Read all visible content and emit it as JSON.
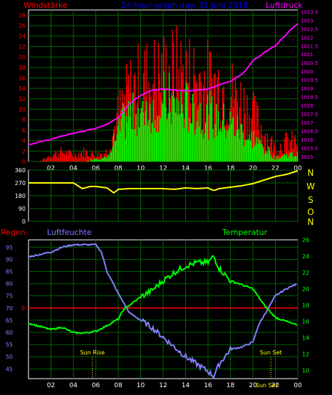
{
  "header": {
    "left_label": "Windstärke",
    "title": "24-hour-graph day: 31 Juni 2018",
    "right_label": "Luftdruck"
  },
  "colors": {
    "wind_gust": "#ff0000",
    "wind_avg": "#00ff00",
    "pressure": "#ff00ff",
    "direction": "#ffff00",
    "compass": "#ffff00",
    "humidity": "#8080ff",
    "temperature": "#00ff00",
    "rain": "#ff0000",
    "grid": "#006600",
    "frame": "#ffffff",
    "title": "#0000ff",
    "label_red": "#ff0000",
    "sun_text": "#ffff00"
  },
  "chart_data": [
    {
      "type": "bar",
      "name": "wind-pressure",
      "x_ticks": [
        "02",
        "04",
        "06",
        "08",
        "10",
        "12",
        "14",
        "16",
        "18",
        "20",
        "22",
        "00"
      ],
      "x_range": [
        0,
        24
      ],
      "ylim_left": [
        0,
        29
      ],
      "yticks_left": [
        0,
        2,
        4,
        6,
        8,
        10,
        12,
        14,
        16,
        18,
        20,
        22,
        24,
        26,
        28
      ],
      "ylim_right": [
        1014.7,
        1023.6
      ],
      "yticks_right": [
        "1015",
        "1015.5",
        "1016",
        "1016.5",
        "1017",
        "1017.5",
        "1018",
        "1018.5",
        "1019",
        "1019.5",
        "1020",
        "1020.5",
        "1021",
        "1021.5",
        "1022",
        "1022.5",
        "1023",
        "1023.5"
      ],
      "pressure": {
        "x": [
          0,
          1,
          2,
          3,
          4,
          5,
          6,
          7,
          8,
          9,
          10,
          11,
          12,
          13,
          14,
          15,
          16,
          17,
          18,
          19,
          20,
          21,
          22,
          23,
          24
        ],
        "values": [
          1015.7,
          1015.85,
          1016.0,
          1016.2,
          1016.35,
          1016.5,
          1016.65,
          1016.9,
          1017.3,
          1018.1,
          1018.6,
          1018.9,
          1018.95,
          1018.9,
          1018.85,
          1018.9,
          1018.95,
          1019.2,
          1019.4,
          1019.8,
          1020.6,
          1021.1,
          1021.5,
          1022.2,
          1022.8
        ]
      },
      "wind_hourly": {
        "x": [
          0,
          1,
          2,
          3,
          4,
          5,
          6,
          7,
          8,
          9,
          10,
          11,
          12,
          13,
          14,
          15,
          16,
          17,
          18,
          19,
          20,
          21,
          22,
          23
        ],
        "gust": [
          0,
          0,
          2,
          3,
          2,
          3,
          2,
          3,
          14,
          21,
          24,
          25,
          26,
          27,
          26,
          25,
          24,
          23,
          21,
          18,
          14,
          9,
          4,
          6
        ],
        "avg": [
          0,
          0,
          0,
          0,
          0,
          0,
          1,
          1,
          9,
          14,
          16,
          17,
          18,
          17,
          16,
          15,
          14,
          12,
          11,
          9,
          7,
          4,
          1,
          2
        ]
      }
    },
    {
      "type": "line",
      "name": "wind-direction",
      "ylim": [
        0,
        360
      ],
      "yticks": [
        0,
        90,
        180,
        270,
        360
      ],
      "compass": [
        "N",
        "W",
        "S",
        "O",
        "N"
      ],
      "series": {
        "x": [
          0,
          1,
          2,
          3,
          4,
          4.8,
          5.5,
          6,
          7,
          7.6,
          8,
          9,
          10,
          11,
          12,
          13,
          14,
          15,
          16,
          16.5,
          17,
          18,
          19,
          20,
          21,
          22,
          23,
          24
        ],
        "values": [
          270,
          270,
          270,
          270,
          270,
          230,
          245,
          245,
          235,
          200,
          225,
          230,
          230,
          230,
          230,
          225,
          235,
          230,
          235,
          215,
          230,
          240,
          250,
          265,
          290,
          315,
          330,
          355
        ]
      }
    },
    {
      "type": "line",
      "name": "temp-humidity-rain",
      "labels": {
        "rain": "Regen",
        "humidity": "Luftfeuchte",
        "temperature": "Temperatur"
      },
      "x_ticks": [
        "02",
        "04",
        "06",
        "08",
        "10",
        "12",
        "14",
        "16",
        "18",
        "20",
        "22",
        "00"
      ],
      "humidity_axis": {
        "ylim": [
          41,
          98
        ],
        "yticks": [
          45,
          50,
          55,
          60,
          65,
          70,
          75,
          80,
          85,
          90,
          95
        ]
      },
      "temp_axis": {
        "ylim": [
          9,
          26
        ],
        "yticks": [
          10,
          12,
          14,
          16,
          18,
          20,
          22,
          24,
          26
        ]
      },
      "rain_axis": {
        "ytick": "0"
      },
      "humidity": {
        "x": [
          0,
          1,
          2,
          3,
          4,
          5,
          6,
          6.5,
          7,
          8,
          8.5,
          9,
          10,
          11,
          12,
          13,
          14,
          15,
          16,
          16.5,
          17,
          18,
          19,
          20,
          20.5,
          21,
          22,
          23,
          24
        ],
        "values": [
          91,
          92,
          93,
          95,
          96,
          96,
          96,
          93,
          85,
          76,
          72,
          68,
          65,
          62,
          58,
          54,
          50,
          47,
          44,
          42,
          47,
          53,
          54,
          56,
          63,
          67,
          75,
          78,
          80
        ]
      },
      "temperature": {
        "x": [
          0,
          1,
          2,
          3,
          4,
          5,
          6,
          7,
          8,
          8.5,
          9,
          10,
          11,
          12,
          13,
          14,
          15,
          16,
          16.5,
          17,
          18,
          19,
          20,
          21,
          22,
          23,
          24
        ],
        "values": [
          15.8,
          15.4,
          15.0,
          15.3,
          14.6,
          14.6,
          14.8,
          15.5,
          16.3,
          17.5,
          18.0,
          19.0,
          19.8,
          21.0,
          22.0,
          22.8,
          23.2,
          23.2,
          24.0,
          22.5,
          21.0,
          20.5,
          20.0,
          18.0,
          16.5,
          16.0,
          15.5
        ]
      },
      "rain": {
        "value": 0
      },
      "sun": {
        "rise_label": "Sun Rise",
        "set_label": "Sun Set",
        "rise_hour": 5.7,
        "set_hour": 21.6
      }
    }
  ]
}
